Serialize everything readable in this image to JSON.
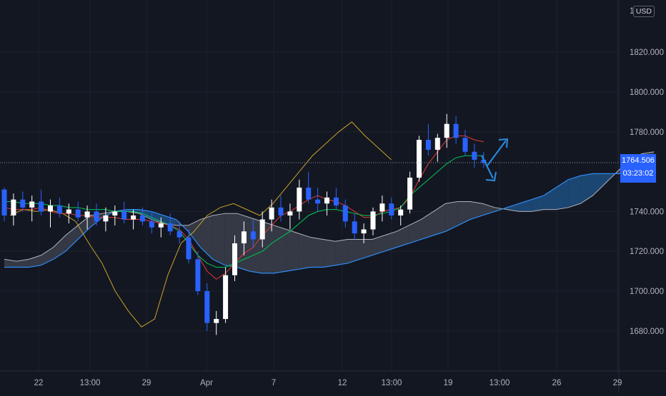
{
  "currency": "USD",
  "colors": {
    "background": "#131722",
    "grid": "#1e222d",
    "up": "#ffffff",
    "down": "#2962ff",
    "tenkan": "#e53935",
    "kijun": "#00c853",
    "chikou": "#c9a227",
    "span_a": "#b0b3bb",
    "span_b": "#2f8cf5",
    "cloud_bear": "#3b3f4b",
    "cloud_bull": "#1f4f80",
    "arrow": "#2b8de0"
  },
  "chart_data": {
    "type": "candlestick",
    "indicator": "Ichimoku Cloud",
    "y_ticks": [
      "1820.000",
      "1800.000",
      "1780.000",
      "1740.000",
      "1720.000",
      "1700.000",
      "1680.000"
    ],
    "y_top_label_partial": "18",
    "ylim": [
      1665,
      1840
    ],
    "x_ticks": [
      "22",
      "13:00",
      "29",
      "Apr",
      "7",
      "12",
      "13:00",
      "19",
      "13:00",
      "26",
      "29"
    ],
    "grid": true,
    "current_price": "1764.506",
    "countdown": "03:23:02",
    "candles": [
      [
        1751,
        1752,
        1735,
        1738
      ],
      [
        1738,
        1749,
        1733,
        1746
      ],
      [
        1746,
        1750,
        1740,
        1742
      ],
      [
        1742,
        1748,
        1735,
        1745
      ],
      [
        1745,
        1751,
        1738,
        1740
      ],
      [
        1740,
        1746,
        1732,
        1743
      ],
      [
        1743,
        1747,
        1737,
        1739
      ],
      [
        1739,
        1744,
        1734,
        1741
      ],
      [
        1741,
        1745,
        1735,
        1737
      ],
      [
        1737,
        1743,
        1731,
        1740
      ],
      [
        1740,
        1744,
        1733,
        1735
      ],
      [
        1735,
        1742,
        1730,
        1738
      ],
      [
        1738,
        1743,
        1733,
        1740
      ],
      [
        1740,
        1745,
        1734,
        1736
      ],
      [
        1736,
        1741,
        1731,
        1738
      ],
      [
        1738,
        1742,
        1733,
        1735
      ],
      [
        1735,
        1740,
        1729,
        1732
      ],
      [
        1732,
        1737,
        1727,
        1734
      ],
      [
        1734,
        1739,
        1728,
        1730
      ],
      [
        1730,
        1735,
        1724,
        1727
      ],
      [
        1727,
        1731,
        1714,
        1716
      ],
      [
        1716,
        1720,
        1698,
        1700
      ],
      [
        1700,
        1704,
        1680,
        1684
      ],
      [
        1684,
        1690,
        1678,
        1686
      ],
      [
        1686,
        1712,
        1684,
        1708
      ],
      [
        1708,
        1728,
        1705,
        1724
      ],
      [
        1724,
        1735,
        1718,
        1730
      ],
      [
        1730,
        1736,
        1722,
        1726
      ],
      [
        1726,
        1740,
        1722,
        1736
      ],
      [
        1736,
        1746,
        1730,
        1742
      ],
      [
        1742,
        1748,
        1735,
        1738
      ],
      [
        1738,
        1744,
        1731,
        1740
      ],
      [
        1740,
        1756,
        1736,
        1752
      ],
      [
        1752,
        1760,
        1744,
        1746
      ],
      [
        1746,
        1752,
        1740,
        1744
      ],
      [
        1744,
        1750,
        1738,
        1747
      ],
      [
        1747,
        1752,
        1741,
        1743
      ],
      [
        1743,
        1746,
        1732,
        1735
      ],
      [
        1735,
        1739,
        1726,
        1729
      ],
      [
        1729,
        1734,
        1724,
        1731
      ],
      [
        1731,
        1742,
        1728,
        1740
      ],
      [
        1740,
        1748,
        1735,
        1744
      ],
      [
        1744,
        1747,
        1736,
        1738
      ],
      [
        1738,
        1743,
        1733,
        1741
      ],
      [
        1741,
        1760,
        1739,
        1757
      ],
      [
        1757,
        1778,
        1755,
        1776
      ],
      [
        1776,
        1784,
        1768,
        1771
      ],
      [
        1771,
        1779,
        1765,
        1777
      ],
      [
        1777,
        1789,
        1772,
        1784
      ],
      [
        1784,
        1788,
        1774,
        1777
      ],
      [
        1777,
        1781,
        1768,
        1770
      ],
      [
        1770,
        1774,
        1762,
        1766
      ],
      [
        1766,
        1770,
        1762,
        1764.506
      ]
    ],
    "tenkan": [
      1742,
      1741,
      1741,
      1741,
      1742,
      1740,
      1739,
      1739,
      1738,
      1738,
      1737,
      1737,
      1737,
      1736,
      1736,
      1736,
      1735,
      1734,
      1733,
      1731,
      1726,
      1718,
      1710,
      1706,
      1709,
      1714,
      1719,
      1722,
      1728,
      1733,
      1738,
      1740,
      1743,
      1746,
      1748,
      1746,
      1745,
      1743,
      1740,
      1737,
      1737,
      1740,
      1741,
      1742,
      1747,
      1756,
      1764,
      1770,
      1776,
      1778,
      1778,
      1776,
      1775
    ],
    "kijun": [
      1745,
      1745,
      1744,
      1744,
      1744,
      1743,
      1743,
      1742,
      1742,
      1741,
      1741,
      1741,
      1740,
      1740,
      1740,
      1739,
      1737,
      1735,
      1733,
      1730,
      1724,
      1718,
      1714,
      1712,
      1712,
      1714,
      1716,
      1718,
      1720,
      1724,
      1727,
      1730,
      1734,
      1738,
      1740,
      1741,
      1741,
      1740,
      1739,
      1738,
      1738,
      1739,
      1740,
      1742,
      1748,
      1752,
      1756,
      1760,
      1764,
      1767,
      1768,
      1768,
      1768
    ],
    "chikou": [
      1738,
      1741,
      1740,
      1741,
      1739,
      1735,
      1724,
      1714,
      1700,
      1690,
      1682,
      1686,
      1708,
      1724,
      1730,
      1738,
      1742,
      1744,
      1741,
      1738,
      1744,
      1752,
      1760,
      1768,
      1774,
      1780,
      1785,
      1778,
      1772,
      1766
    ],
    "span_a": [
      1716,
      1715,
      1716,
      1718,
      1722,
      1728,
      1733,
      1738,
      1739,
      1740,
      1740,
      1739,
      1736,
      1734,
      1733,
      1733,
      1736,
      1738,
      1739,
      1739,
      1737,
      1735,
      1733,
      1731,
      1729,
      1727,
      1726,
      1725,
      1726,
      1726,
      1726,
      1728,
      1730,
      1733,
      1736,
      1740,
      1744,
      1745,
      1745,
      1744,
      1742,
      1741,
      1740,
      1740,
      1741,
      1741,
      1742,
      1744,
      1748,
      1754,
      1760,
      1766,
      1769,
      1770
    ],
    "span_b": [
      1712,
      1712,
      1712,
      1713,
      1716,
      1720,
      1726,
      1732,
      1737,
      1740,
      1741,
      1741,
      1740,
      1738,
      1736,
      1730,
      1722,
      1716,
      1713,
      1712,
      1710,
      1709,
      1709,
      1710,
      1711,
      1712,
      1712,
      1713,
      1714,
      1716,
      1718,
      1720,
      1722,
      1724,
      1726,
      1728,
      1730,
      1733,
      1736,
      1738,
      1740,
      1742,
      1744,
      1746,
      1748,
      1752,
      1756,
      1758,
      1759,
      1759,
      1759,
      1759,
      1759,
      1759
    ]
  }
}
